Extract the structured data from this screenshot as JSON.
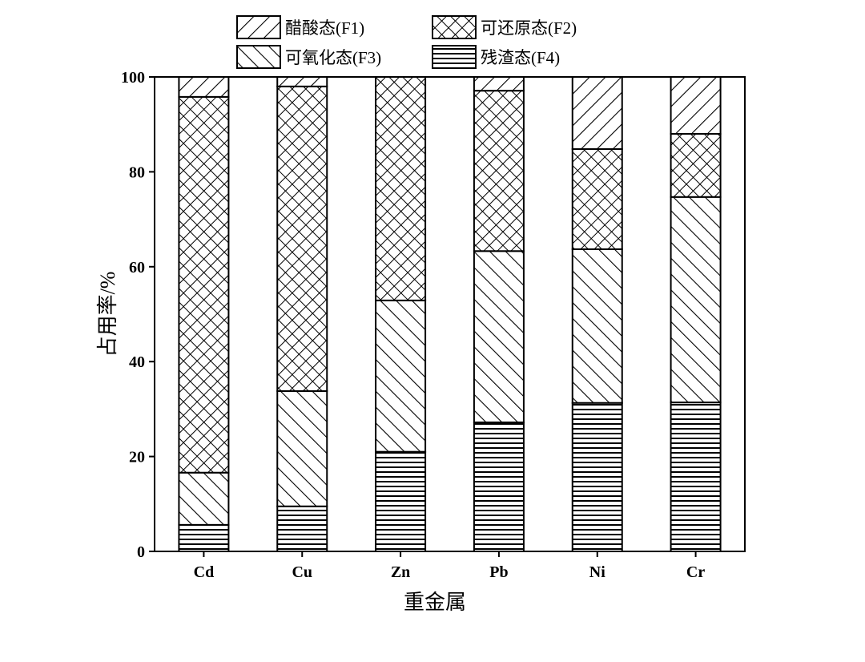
{
  "chart_data": {
    "type": "bar",
    "stacked": true,
    "title": "",
    "xlabel": "重金属",
    "ylabel": "占用率/%",
    "ylim": [
      0,
      100
    ],
    "yticks": [
      "0",
      "20",
      "40",
      "60",
      "80",
      "100"
    ],
    "categories": [
      "Cd",
      "Cu",
      "Zn",
      "Pb",
      "Ni",
      "Cr"
    ],
    "legend_position": "top",
    "series": [
      {
        "name": "残渣态(F4)",
        "pattern": "horizontal-lines",
        "values": [
          5.6,
          9.5,
          21.0,
          27.2,
          31.3,
          31.4
        ]
      },
      {
        "name": "可氧化态(F3)",
        "pattern": "back-diagonal",
        "values": [
          11.0,
          24.3,
          31.9,
          36.1,
          32.4,
          43.3
        ]
      },
      {
        "name": "可还原态(F2)",
        "pattern": "crosshatch",
        "values": [
          79.2,
          64.2,
          47.1,
          33.8,
          21.1,
          13.3
        ]
      },
      {
        "name": "醋酸态(F1)",
        "pattern": "forward-diagonal",
        "values": [
          4.2,
          2.0,
          0.0,
          2.9,
          15.2,
          12.0
        ]
      }
    ],
    "legend_order": [
      "醋酸态(F1)",
      "可还原态(F2)",
      "可氧化态(F3)",
      "残渣态(F4)"
    ],
    "grid": false
  }
}
